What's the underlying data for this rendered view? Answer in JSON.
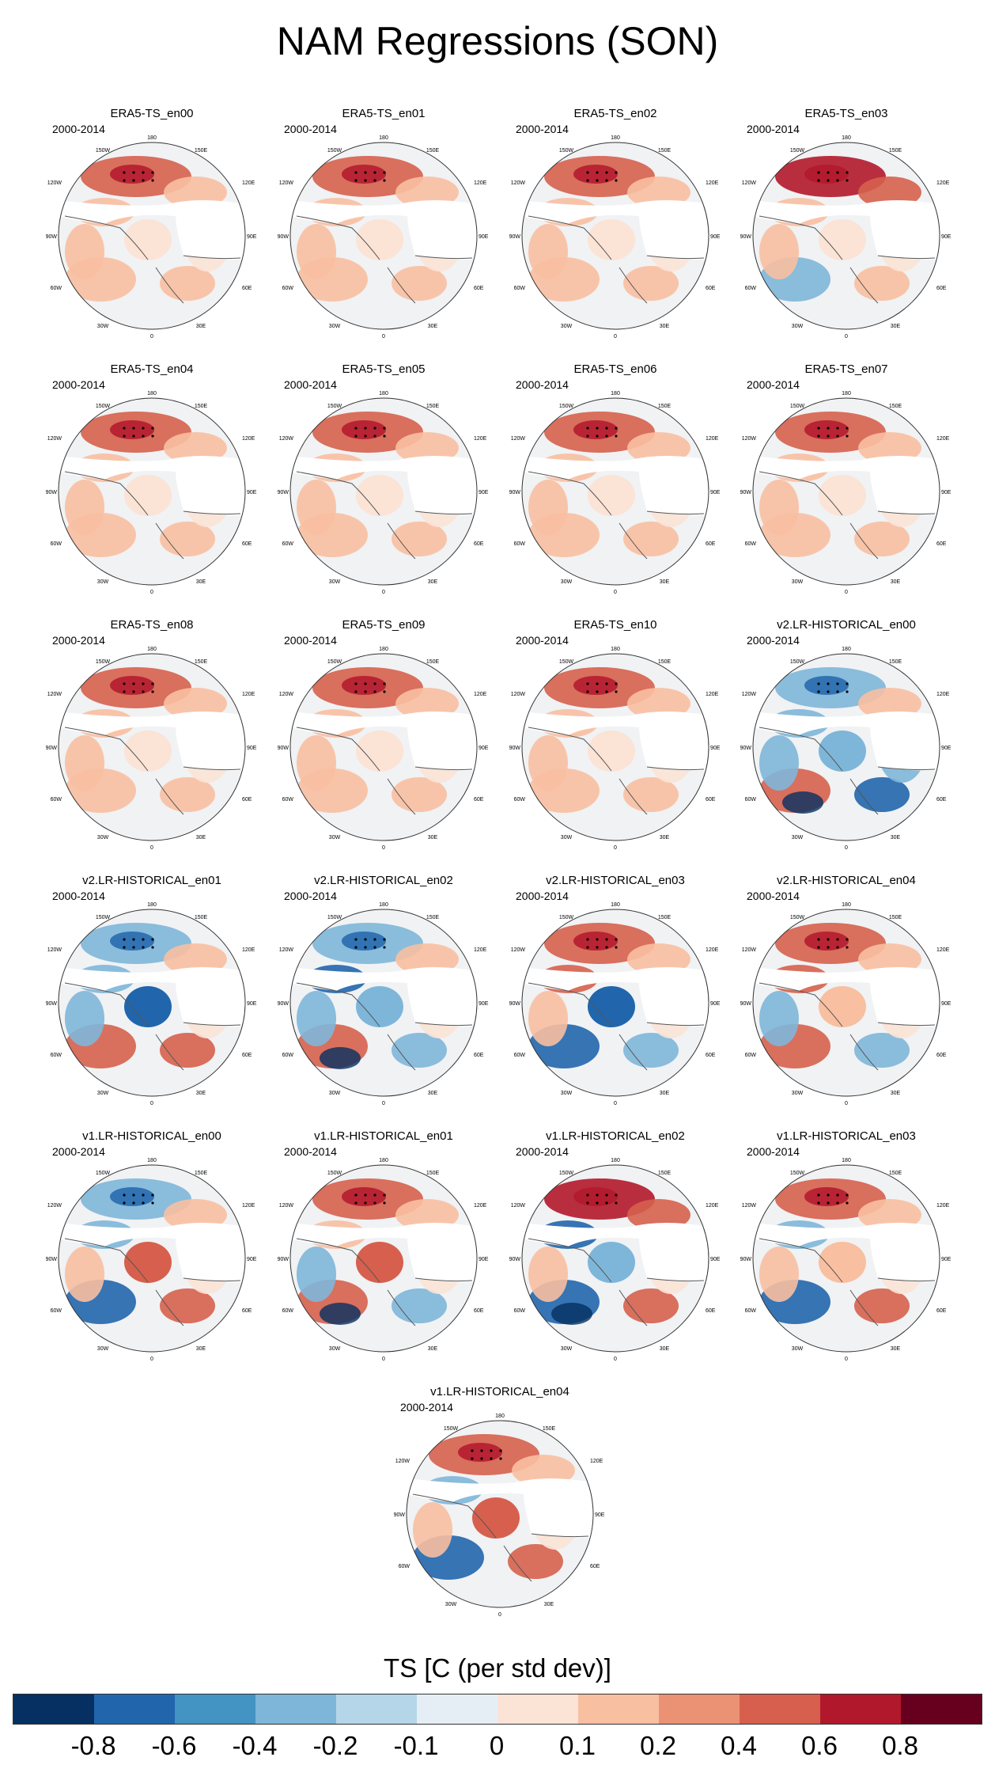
{
  "figure": {
    "title": "NAM Regressions (SON)",
    "period": "2000-2014",
    "lon_labels": {
      "top": "180",
      "upper_left": "150W",
      "upper_right": "150E",
      "left_upper": "120W",
      "right_upper": "120E",
      "left": "90W",
      "right": "90E",
      "left_lower": "60W",
      "right_lower": "60E",
      "lower_left": "30W",
      "lower_right": "30E",
      "bottom": "0"
    }
  },
  "panels": [
    {
      "title": "ERA5-TS_en00"
    },
    {
      "title": "ERA5-TS_en01"
    },
    {
      "title": "ERA5-TS_en02"
    },
    {
      "title": "ERA5-TS_en03"
    },
    {
      "title": "ERA5-TS_en04"
    },
    {
      "title": "ERA5-TS_en05"
    },
    {
      "title": "ERA5-TS_en06"
    },
    {
      "title": "ERA5-TS_en07"
    },
    {
      "title": "ERA5-TS_en08"
    },
    {
      "title": "ERA5-TS_en09"
    },
    {
      "title": "ERA5-TS_en10"
    },
    {
      "title": "v2.LR-HISTORICAL_en00"
    },
    {
      "title": "v2.LR-HISTORICAL_en01"
    },
    {
      "title": "v2.LR-HISTORICAL_en02"
    },
    {
      "title": "v2.LR-HISTORICAL_en03"
    },
    {
      "title": "v2.LR-HISTORICAL_en04"
    },
    {
      "title": "v1.LR-HISTORICAL_en00"
    },
    {
      "title": "v1.LR-HISTORICAL_en01"
    },
    {
      "title": "v1.LR-HISTORICAL_en02"
    },
    {
      "title": "v1.LR-HISTORICAL_en03"
    },
    {
      "title": "v1.LR-HISTORICAL_en04"
    }
  ],
  "colorbar": {
    "label": "TS [C (per std dev)]",
    "tick_labels": [
      "-0.8",
      "-0.6",
      "-0.4",
      "-0.2",
      "-0.1",
      "0",
      "0.1",
      "0.2",
      "0.4",
      "0.6",
      "0.8"
    ],
    "colors": [
      "#053061",
      "#2166ac",
      "#4393c3",
      "#7eb6d9",
      "#b5d6e9",
      "#e5eef4",
      "#fbe3d6",
      "#f8bfa1",
      "#ea9273",
      "#d6604d",
      "#b2182b",
      "#67001f"
    ]
  },
  "chart_data": {
    "type": "map",
    "title": "NAM Regressions (SON)",
    "variable": "TS",
    "units": "C (per std dev)",
    "season": "SON",
    "period": "2000-2014",
    "projection": "polar stereographic (Northern Hemisphere)",
    "contour_levels": [
      -0.8,
      -0.6,
      -0.4,
      -0.2,
      -0.1,
      0,
      0.1,
      0.2,
      0.4,
      0.6,
      0.8
    ],
    "panel_count": 21
  }
}
